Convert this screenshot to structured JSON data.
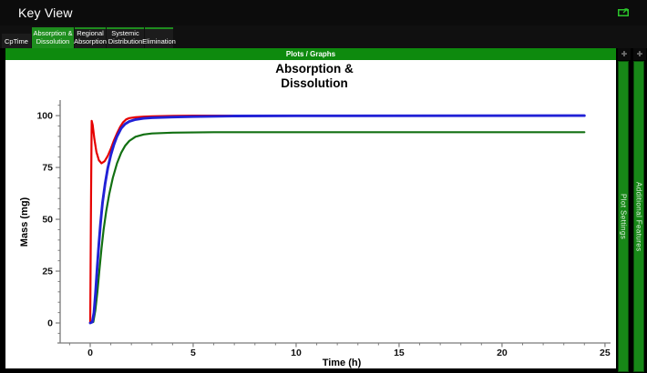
{
  "window": {
    "title": "Key View"
  },
  "icons": {
    "open_external": "open-in-new-window",
    "panel_expand": "✛"
  },
  "tabs": [
    {
      "line1": "CpTime",
      "line2": ""
    },
    {
      "line1": "Absorption &",
      "line2": "Dissolution"
    },
    {
      "line1": "Regional",
      "line2": "Absorption"
    },
    {
      "line1": "Systemic",
      "line2": "Distribution"
    },
    {
      "line1": "Elimination",
      "line2": ""
    }
  ],
  "active_tab": "Absorption & Dissolution",
  "section_bar": {
    "label": "Plots / Graphs"
  },
  "side_panels": [
    {
      "label": "Plot Settings"
    },
    {
      "label": "Additional Features"
    }
  ],
  "colors": {
    "titlebar_black": "#0c0c0c",
    "header_green": "#0e8a0e",
    "tab_active_green": "#1e8e1e",
    "panel_green": "#178717",
    "icon_green": "#2bc42b",
    "curve_red": "#e60000",
    "curve_blue": "#2121d6",
    "curve_green": "#127012"
  },
  "chart_data": {
    "type": "line",
    "title": "Absorption & Dissolution",
    "title_line1": "Absorption &",
    "title_line2": "Dissolution",
    "xlabel": "Time (h)",
    "ylabel": "Mass (mg)",
    "xlim": [
      -1.46,
      25.27
    ],
    "ylim": [
      -9.65,
      107.5
    ],
    "xticks": [
      0,
      5,
      10,
      15,
      20,
      25
    ],
    "yticks": [
      0,
      25,
      50,
      75,
      100
    ],
    "x_minor_step": 1,
    "y_minor_step": 5,
    "grid": false,
    "legend": "none",
    "series": [
      {
        "name": "red-curve",
        "color": "#e60000",
        "stroke_width": 2.2,
        "points": [
          [
            0,
            0
          ],
          [
            0.04,
            60
          ],
          [
            0.07,
            97.5
          ],
          [
            0.12,
            95.5
          ],
          [
            0.2,
            89
          ],
          [
            0.3,
            82.5
          ],
          [
            0.42,
            78.5
          ],
          [
            0.55,
            77
          ],
          [
            0.7,
            78
          ],
          [
            0.85,
            80.5
          ],
          [
            1.0,
            84
          ],
          [
            1.15,
            88
          ],
          [
            1.3,
            91.5
          ],
          [
            1.45,
            94.5
          ],
          [
            1.6,
            96.8
          ],
          [
            1.75,
            98.2
          ],
          [
            1.9,
            98.8
          ],
          [
            2.2,
            99.2
          ],
          [
            2.6,
            99.5
          ],
          [
            3,
            99.7
          ],
          [
            4,
            99.9
          ],
          [
            5,
            100
          ],
          [
            24,
            100
          ]
        ]
      },
      {
        "name": "green-curve",
        "color": "#127012",
        "stroke_width": 2.2,
        "points": [
          [
            0,
            0
          ],
          [
            0.15,
            0.5
          ],
          [
            0.25,
            6
          ],
          [
            0.35,
            15
          ],
          [
            0.45,
            26
          ],
          [
            0.55,
            36
          ],
          [
            0.65,
            45
          ],
          [
            0.78,
            54
          ],
          [
            0.92,
            62
          ],
          [
            1.1,
            70
          ],
          [
            1.3,
            77
          ],
          [
            1.5,
            82
          ],
          [
            1.7,
            85.5
          ],
          [
            1.9,
            87.8
          ],
          [
            2.2,
            89.8
          ],
          [
            2.6,
            90.9
          ],
          [
            3,
            91.4
          ],
          [
            4,
            91.8
          ],
          [
            6,
            92
          ],
          [
            24,
            92
          ]
        ]
      },
      {
        "name": "blue-curve",
        "color": "#2121d6",
        "stroke_width": 2.9,
        "points": [
          [
            0,
            0
          ],
          [
            0.1,
            0.5
          ],
          [
            0.18,
            5
          ],
          [
            0.26,
            15
          ],
          [
            0.34,
            27
          ],
          [
            0.42,
            38
          ],
          [
            0.5,
            48
          ],
          [
            0.6,
            58
          ],
          [
            0.72,
            67
          ],
          [
            0.85,
            74.5
          ],
          [
            1.0,
            81
          ],
          [
            1.15,
            86
          ],
          [
            1.3,
            90
          ],
          [
            1.5,
            93.8
          ],
          [
            1.7,
            96
          ],
          [
            1.9,
            97.2
          ],
          [
            2.2,
            98.1
          ],
          [
            2.6,
            98.7
          ],
          [
            3,
            99
          ],
          [
            4,
            99.3
          ],
          [
            5,
            99.5
          ],
          [
            7,
            99.8
          ],
          [
            10,
            99.9
          ],
          [
            24,
            100
          ]
        ]
      }
    ]
  }
}
